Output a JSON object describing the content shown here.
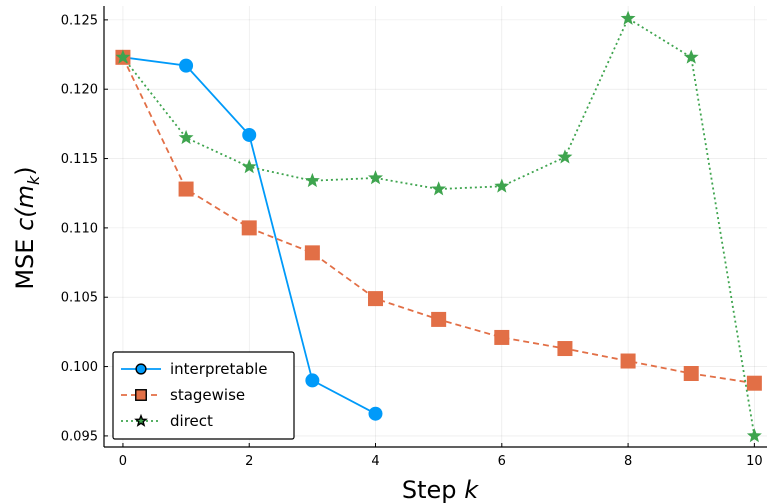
{
  "chart_data": {
    "type": "line",
    "xlabel_text": "Step",
    "xlabel_var": "k",
    "ylabel_text": "MSE",
    "ylabel_var": "c(m",
    "ylabel_sub": "k",
    "ylabel_close": ")",
    "xlim": [
      -0.3,
      10.2
    ],
    "ylim": [
      0.0942,
      0.126
    ],
    "x_ticks": [
      0,
      2,
      4,
      6,
      8,
      10
    ],
    "y_ticks": [
      0.095,
      0.1,
      0.105,
      0.11,
      0.115,
      0.12,
      0.125
    ],
    "y_tick_labels": [
      "0.095",
      "0.100",
      "0.105",
      "0.110",
      "0.115",
      "0.120",
      "0.125"
    ],
    "grid": true,
    "legend_position": "bottom-left",
    "series": [
      {
        "name": "interpretable",
        "color": "#009AF9",
        "marker": "circle",
        "line_style": "solid",
        "x": [
          0,
          1,
          2,
          3,
          4
        ],
        "values": [
          0.1223,
          0.1217,
          0.1167,
          0.099,
          0.0966
        ]
      },
      {
        "name": "stagewise",
        "color": "#E26F46",
        "marker": "square",
        "line_style": "dashed",
        "x": [
          0,
          1,
          2,
          3,
          4,
          5,
          6,
          7,
          8,
          9,
          10
        ],
        "values": [
          0.1223,
          0.1128,
          0.11,
          0.1082,
          0.1049,
          0.1034,
          0.1021,
          0.1013,
          0.1004,
          0.0995,
          0.0988
        ]
      },
      {
        "name": "direct",
        "color": "#3EA44E",
        "marker": "star",
        "line_style": "dotted",
        "x": [
          0,
          1,
          2,
          3,
          4,
          5,
          6,
          7,
          8,
          9,
          10
        ],
        "values": [
          0.1223,
          0.1165,
          0.1144,
          0.1134,
          0.1136,
          0.1128,
          0.113,
          0.1151,
          0.1251,
          0.1223,
          0.095
        ]
      }
    ]
  }
}
